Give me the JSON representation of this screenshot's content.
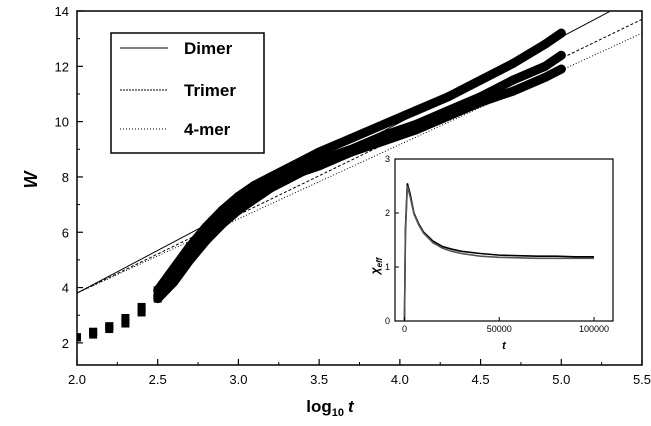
{
  "chart_data": [
    {
      "type": "scatter",
      "xlabel": "log",
      "xlabel_sub": "10",
      "xlabel_var": "t",
      "ylabel": "W",
      "xlim": [
        2.0,
        5.5
      ],
      "ylim": [
        1.2,
        14
      ],
      "x_ticks": [
        "2.0",
        "2.5",
        "3.0",
        "3.5",
        "4.0",
        "4.5",
        "5.0",
        "5.5"
      ],
      "y_ticks": [
        "2",
        "4",
        "6",
        "8",
        "10",
        "12",
        "14"
      ],
      "legend": {
        "position": "top-left",
        "entries": [
          "Dimer",
          "Trimer",
          "4-mer"
        ]
      },
      "series": [
        {
          "name": "Dimer",
          "style": "solid",
          "x": [
            2.0,
            2.1,
            2.2,
            2.3,
            2.4,
            2.5,
            2.6,
            2.7,
            2.8,
            2.9,
            3.0,
            3.1,
            3.2,
            3.3,
            3.4,
            3.5,
            3.7,
            3.9,
            4.1,
            4.3,
            4.5,
            4.7,
            4.9,
            5.0
          ],
          "y": [
            2.2,
            2.4,
            2.6,
            2.9,
            3.3,
            3.9,
            4.7,
            5.5,
            6.2,
            6.8,
            7.3,
            7.7,
            8.0,
            8.3,
            8.6,
            8.9,
            9.4,
            9.9,
            10.4,
            10.9,
            11.5,
            12.1,
            12.8,
            13.2
          ],
          "fit": {
            "x": [
              2.0,
              5.5
            ],
            "y": [
              3.8,
              14.6
            ]
          }
        },
        {
          "name": "Trimer",
          "style": "dashed",
          "x": [
            2.0,
            2.1,
            2.2,
            2.3,
            2.4,
            2.5,
            2.6,
            2.7,
            2.8,
            2.9,
            3.0,
            3.1,
            3.2,
            3.3,
            3.4,
            3.5,
            3.7,
            3.9,
            4.1,
            4.3,
            4.5,
            4.7,
            4.9,
            5.0
          ],
          "y": [
            2.2,
            2.4,
            2.6,
            2.8,
            3.2,
            3.7,
            4.4,
            5.2,
            5.9,
            6.5,
            7.0,
            7.4,
            7.8,
            8.1,
            8.3,
            8.6,
            9.0,
            9.5,
            9.9,
            10.4,
            10.9,
            11.5,
            12.0,
            12.4
          ],
          "fit": {
            "x": [
              2.0,
              5.5
            ],
            "y": [
              3.8,
              13.7
            ]
          }
        },
        {
          "name": "4-mer",
          "style": "dotted",
          "x": [
            2.0,
            2.1,
            2.2,
            2.3,
            2.4,
            2.5,
            2.6,
            2.7,
            2.8,
            2.9,
            3.0,
            3.1,
            3.2,
            3.3,
            3.4,
            3.5,
            3.7,
            3.9,
            4.1,
            4.3,
            4.5,
            4.7,
            4.9,
            5.0
          ],
          "y": [
            2.2,
            2.3,
            2.5,
            2.7,
            3.1,
            3.6,
            4.2,
            5.0,
            5.7,
            6.3,
            6.8,
            7.2,
            7.6,
            7.9,
            8.2,
            8.4,
            8.9,
            9.3,
            9.7,
            10.2,
            10.7,
            11.1,
            11.6,
            11.9
          ],
          "fit": {
            "x": [
              2.0,
              5.5
            ],
            "y": [
              3.8,
              13.2
            ]
          }
        }
      ]
    },
    {
      "type": "line",
      "position": "inset",
      "xlabel": "t",
      "ylabel": "χ",
      "ylabel_sub": "eff",
      "xlim": [
        -5000,
        110000
      ],
      "ylim": [
        0,
        3
      ],
      "x_ticks": [
        "0",
        "50000",
        "100000"
      ],
      "y_ticks": [
        "0",
        "1",
        "2",
        "3"
      ],
      "x_tick_values": [
        0,
        50000,
        100000
      ],
      "y_tick_values": [
        0,
        1,
        2,
        3
      ],
      "series": [
        {
          "x": [
            0,
            500,
            1500,
            3000,
            5000,
            7500,
            10000,
            15000,
            20000,
            25000,
            30000,
            40000,
            50000,
            60000,
            70000,
            80000,
            90000,
            100000
          ],
          "y": [
            0.0,
            1.7,
            2.55,
            2.35,
            2.0,
            1.8,
            1.65,
            1.48,
            1.38,
            1.33,
            1.29,
            1.25,
            1.22,
            1.21,
            1.2,
            1.2,
            1.19,
            1.19
          ]
        },
        {
          "x": [
            0,
            500,
            1500,
            3000,
            5000,
            7500,
            10000,
            15000,
            20000,
            25000,
            30000,
            40000,
            50000,
            60000,
            70000,
            80000,
            90000,
            100000
          ],
          "y": [
            0.0,
            1.6,
            2.5,
            2.3,
            1.98,
            1.78,
            1.63,
            1.45,
            1.35,
            1.29,
            1.25,
            1.2,
            1.18,
            1.17,
            1.16,
            1.16,
            1.16,
            1.16
          ]
        }
      ]
    }
  ]
}
